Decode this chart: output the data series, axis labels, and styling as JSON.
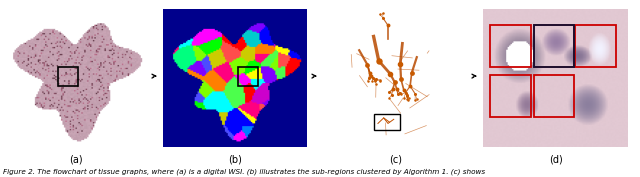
{
  "caption": "Figure 2. The flowchart of tissue graphs, where (a) is a digital WSI. (b) illustrates the sub-regions clustered by Algorithm 1. (c) shows",
  "subcaptions": [
    "(a)",
    "(b)",
    "(c)",
    "(d)"
  ],
  "background_color": "#ffffff",
  "caption_fontsize": 5.2,
  "subcaption_fontsize": 7.0,
  "panel_bg_a": "#f0e8ee",
  "panel_bg_b": "#0000a0",
  "panel_bg_c": "#f8f8f8",
  "panel_bg_d": "#e8d8e0",
  "tissue_color_a": "#d4b0c8",
  "tissue_dark_a": "#8b5070",
  "arrow_color": "#111111",
  "rect_color_b": "#111111",
  "rect_color_c": "#111111",
  "red_rect_color": "#cc0000",
  "dark_rect_color": "#222244"
}
